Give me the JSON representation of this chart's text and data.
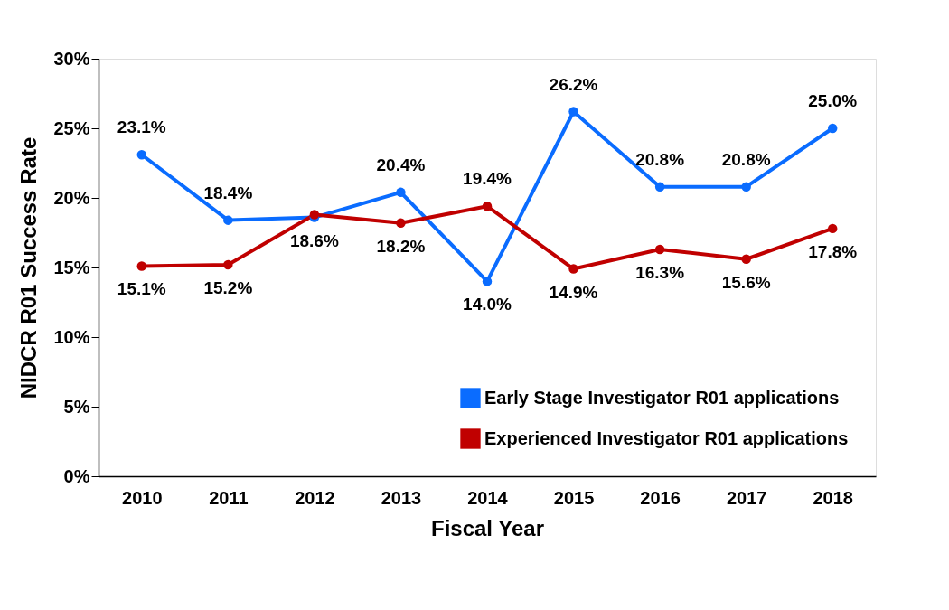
{
  "chart_data": {
    "type": "line",
    "xlabel": "Fiscal Year",
    "ylabel": "NIDCR R01 Success Rate",
    "categories": [
      "2010",
      "2011",
      "2012",
      "2013",
      "2014",
      "2015",
      "2016",
      "2017",
      "2018"
    ],
    "series": [
      {
        "name": "Early Stage Investigator R01 applications",
        "color": "#0a6cff",
        "values": [
          23.1,
          18.4,
          18.6,
          20.4,
          14.0,
          26.2,
          20.8,
          20.8,
          25.0
        ],
        "value_labels": [
          "23.1%",
          "18.4%",
          "18.6%",
          "20.4%",
          "14.0%",
          "26.2%",
          "20.8%",
          "20.8%",
          "25.0%"
        ]
      },
      {
        "name": "Experienced Investigator R01 applications",
        "color": "#c00000",
        "values": [
          15.1,
          15.2,
          18.8,
          18.2,
          19.4,
          14.9,
          16.3,
          15.6,
          17.8
        ],
        "value_labels": [
          "15.1%",
          "15.2%",
          null,
          "18.2%",
          "19.4%",
          "14.9%",
          "16.3%",
          "15.6%",
          "17.8%"
        ]
      }
    ],
    "ylim": [
      0,
      30
    ],
    "yticks": [
      {
        "value": 0,
        "label": "0%"
      },
      {
        "value": 5,
        "label": "5%"
      },
      {
        "value": 10,
        "label": "10%"
      },
      {
        "value": 15,
        "label": "15%"
      },
      {
        "value": 20,
        "label": "20%"
      },
      {
        "value": 25,
        "label": "25%"
      },
      {
        "value": 30,
        "label": "30%"
      }
    ],
    "grid": false,
    "legend": "bottom right",
    "marker": "circle",
    "line_style": "solid"
  }
}
